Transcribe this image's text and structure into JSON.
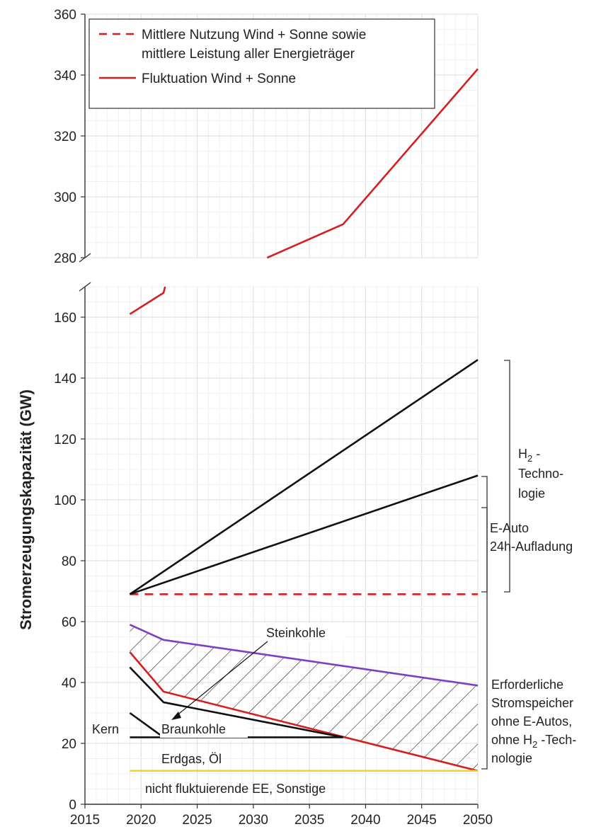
{
  "chart_data": {
    "type": "line",
    "ylabel": "Stromerzeugungskapazität (GW)",
    "xlabel": "",
    "xlim": [
      2015,
      2050
    ],
    "x_ticks": [
      "2015",
      "2020",
      "2025",
      "2030",
      "2035",
      "2040",
      "2045",
      "2050"
    ],
    "y_ticks_upper": [
      "280",
      "300",
      "320",
      "340",
      "360"
    ],
    "y_ticks_lower": [
      "0",
      "20",
      "40",
      "60",
      "80",
      "100",
      "120",
      "140",
      "160"
    ],
    "axis_break": {
      "lower_max": 170,
      "upper_min": 280,
      "upper_max": 360
    },
    "grid": true,
    "legend_position": "top-left",
    "legend": [
      {
        "style": "dashed",
        "color": "#d42020",
        "line1": "Mittlere Nutzung Wind + Sonne sowie",
        "line2": "mittlere Leistung aller Energieträger"
      },
      {
        "style": "solid",
        "color": "#d42020",
        "line1": "Fluktuation Wind + Sonne",
        "line2": ""
      }
    ],
    "series": [
      {
        "name": "Fluktuation Wind + Sonne",
        "color": "#d42020",
        "style": "solid",
        "points": [
          [
            2019,
            161
          ],
          [
            2022,
            168
          ],
          [
            2030,
            278
          ],
          [
            2038,
            291
          ],
          [
            2050,
            342
          ]
        ]
      },
      {
        "name": "Mittlere Nutzung Wind + Sonne sowie mittlere Leistung aller Energieträger",
        "color": "#d42020",
        "style": "dashed",
        "points": [
          [
            2019,
            69
          ],
          [
            2050,
            69
          ]
        ]
      },
      {
        "name": "",
        "color": "#111111",
        "style": "solid",
        "points": [
          [
            2019,
            69
          ],
          [
            2050,
            146
          ]
        ]
      },
      {
        "name": "",
        "color": "#111111",
        "style": "solid",
        "points": [
          [
            2019,
            69
          ],
          [
            2050,
            108
          ]
        ]
      },
      {
        "name": "",
        "color": "#7b3fc4",
        "style": "solid",
        "points": [
          [
            2019,
            59
          ],
          [
            2022,
            54
          ],
          [
            2050,
            39
          ]
        ]
      },
      {
        "name": "",
        "color": "#d42020",
        "style": "solid",
        "points": [
          [
            2019,
            50
          ],
          [
            2022,
            37
          ],
          [
            2050,
            11
          ]
        ]
      },
      {
        "name": "",
        "color": "#111111",
        "style": "solid",
        "points": [
          [
            2019,
            45
          ],
          [
            2022,
            33.5
          ],
          [
            2038,
            22
          ]
        ]
      },
      {
        "name": "",
        "color": "#111111",
        "style": "solid",
        "points": [
          [
            2019,
            30
          ],
          [
            2022,
            22
          ]
        ]
      },
      {
        "name": "",
        "color": "#111111",
        "style": "solid",
        "points": [
          [
            2019,
            22
          ],
          [
            2038,
            22
          ]
        ]
      },
      {
        "name": "",
        "color": "#f2d21a",
        "style": "solid",
        "points": [
          [
            2019,
            11
          ],
          [
            2050,
            11
          ]
        ]
      }
    ],
    "annotations": {
      "h2": {
        "prefix": "H",
        "sub": "2",
        "suffix": " -",
        "line2": "Techno-",
        "line3": "logie"
      },
      "eauto": {
        "line1": "E-Auto",
        "line2": "24h-Aufladung"
      },
      "steinkohle": "Steinkohle",
      "kern": "Kern",
      "braunkohle": "Braunkohle",
      "erdgas": "Erdgas, Öl",
      "nicht_fluktuierende": "nicht fluktuierende  EE, Sonstige",
      "speicher": {
        "line1": "Erforderliche",
        "line2": "Stromspeicher",
        "line3": "ohne E-Autos,",
        "line4_prefix": "ohne H",
        "line4_sub": "2",
        "line4_suffix": " -Tech-",
        "line5": "nologie"
      }
    }
  }
}
